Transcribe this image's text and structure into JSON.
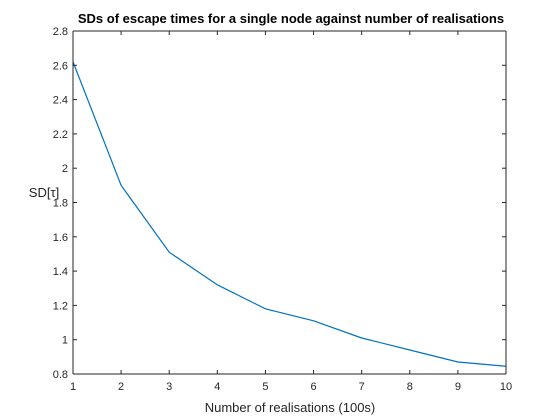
{
  "chart_data": {
    "type": "line",
    "title": "SDs of escape times for a single node against number of realisations",
    "xlabel": "Number of realisations (100s)",
    "ylabel": "SD[τ]",
    "xlim": [
      1,
      10
    ],
    "ylim": [
      0.8,
      2.8
    ],
    "xticks": [
      "1",
      "2",
      "3",
      "4",
      "5",
      "6",
      "7",
      "8",
      "9",
      "10"
    ],
    "yticks": [
      "0.8",
      "1",
      "1.2",
      "1.4",
      "1.6",
      "1.8",
      "2",
      "2.2",
      "2.4",
      "2.6",
      "2.8"
    ],
    "grid": false,
    "series": [
      {
        "color": "#0072BD",
        "x": [
          1,
          2,
          3,
          4,
          5,
          6,
          7,
          8,
          9,
          10
        ],
        "y": [
          2.62,
          1.9,
          1.51,
          1.32,
          1.18,
          1.11,
          1.01,
          0.94,
          0.87,
          0.845
        ]
      }
    ]
  }
}
